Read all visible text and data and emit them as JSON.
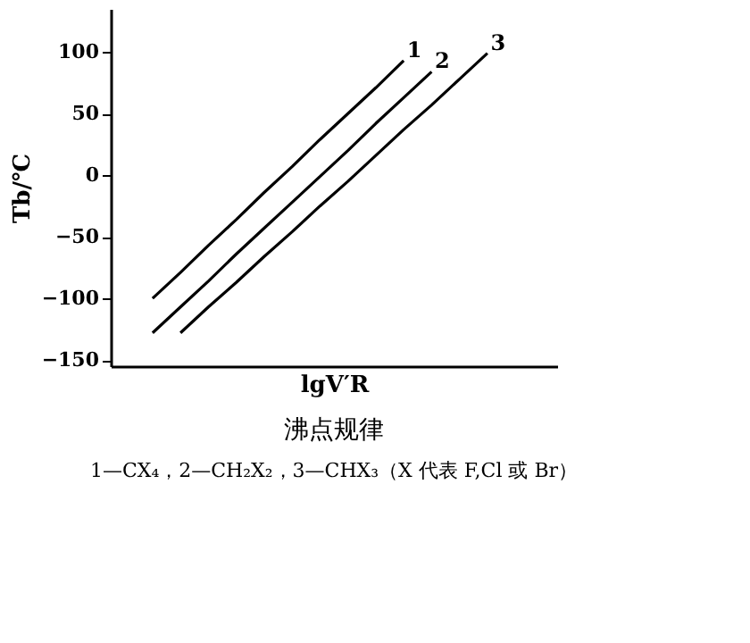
{
  "chart_data": {
    "type": "line",
    "title": "沸点规律",
    "xlabel": "lgV′R",
    "ylabel": "Tb/℃",
    "annotations": [
      "1—CX₄，2—CH₂X₂，3—CHX₃（X 代表 F,Cl 或 Br）"
    ],
    "categories": [
      null,
      null,
      null,
      null,
      null,
      null,
      null,
      null,
      null,
      null,
      null,
      null,
      null,
      null,
      null,
      null
    ],
    "series": [
      {
        "name": "1",
        "color": "#000000",
        "values": [
          null,
          -100,
          -79,
          -57,
          -36,
          -14,
          7,
          29,
          50,
          71,
          93,
          null,
          null,
          null,
          null,
          null
        ]
      },
      {
        "name": "2",
        "color": "#000000",
        "values": [
          null,
          -128,
          -107,
          -86,
          -64,
          -43,
          -22,
          -1,
          20,
          42,
          63,
          84,
          null,
          null,
          null,
          null
        ]
      },
      {
        "name": "3",
        "color": "#000000",
        "values": [
          null,
          null,
          -128,
          -107,
          -87,
          -66,
          -46,
          -25,
          -5,
          16,
          37,
          57,
          78,
          99,
          null,
          null
        ]
      }
    ],
    "ylim": [
      -155,
      135
    ],
    "yticks": [
      -150,
      -100,
      -50,
      0,
      50,
      100
    ],
    "grid": false,
    "legend": false,
    "marker": "none",
    "line_style": "solid",
    "tick_labels": "y"
  }
}
